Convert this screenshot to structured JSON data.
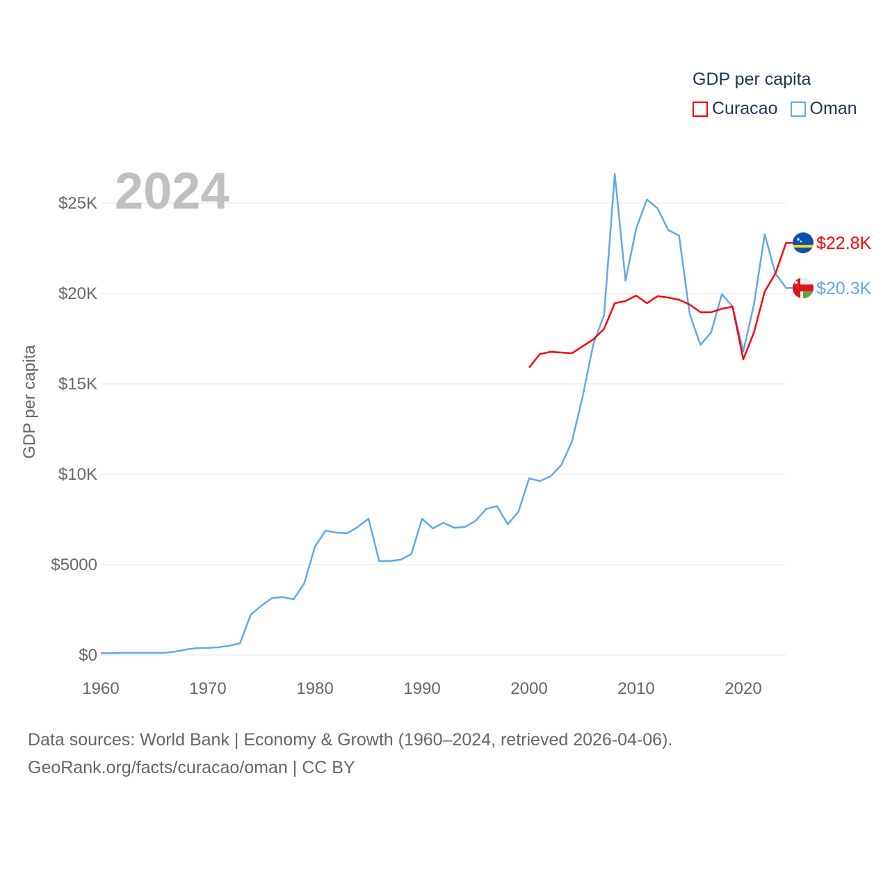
{
  "chart_data": {
    "type": "line",
    "title": "GDP per capita",
    "ylabel": "GDP per capita",
    "xlabel": "",
    "year_label": "2024",
    "xlim": [
      1960,
      2024
    ],
    "ylim": [
      0,
      27000
    ],
    "x_ticks": [
      "1960",
      "1970",
      "1980",
      "1990",
      "2000",
      "2010",
      "2020"
    ],
    "y_ticks": [
      {
        "v": 0,
        "label": "$0"
      },
      {
        "v": 5000,
        "label": "$5000"
      },
      {
        "v": 10000,
        "label": "$10K"
      },
      {
        "v": 15000,
        "label": "$15K"
      },
      {
        "v": 20000,
        "label": "$20K"
      },
      {
        "v": 25000,
        "label": "$25K"
      }
    ],
    "grid": true,
    "legend_position": "top-right",
    "series": [
      {
        "name": "Curacao",
        "color": "#ff0000",
        "end_label": "$22.8K",
        "flag": "curacao-flag",
        "start_year": 2000,
        "values": [
          15900,
          16650,
          16770,
          16730,
          16690,
          17080,
          17460,
          18040,
          19460,
          19580,
          19880,
          19460,
          19850,
          19770,
          19650,
          19380,
          18960,
          18960,
          19150,
          19270,
          16350,
          17850,
          20100,
          21100,
          22800
        ]
      },
      {
        "name": "Oman",
        "color": "#5fa8ee",
        "end_label": "$20.3K",
        "flag": "oman-flag",
        "start_year": 1960,
        "values": [
          100,
          100,
          120,
          120,
          120,
          120,
          120,
          190,
          310,
          380,
          390,
          430,
          510,
          650,
          2230,
          2730,
          3150,
          3200,
          3080,
          3960,
          6000,
          6880,
          6770,
          6730,
          7080,
          7540,
          5190,
          5200,
          5270,
          5580,
          7540,
          7000,
          7310,
          7040,
          7080,
          7420,
          8080,
          8230,
          7230,
          7920,
          9770,
          9620,
          9880,
          10500,
          11810,
          14300,
          17200,
          18800,
          26600,
          20700,
          23600,
          25200,
          24700,
          23500,
          23200,
          18850,
          17150,
          17850,
          19960,
          19270,
          16800,
          19400,
          23270,
          21100,
          20300
        ]
      }
    ]
  },
  "footer": {
    "line1": "Data sources: World Bank | Economy & Growth (1960–2024, retrieved 2026-04-06).",
    "line2": "GeoRank.org/facts/curacao/oman | CC BY"
  }
}
